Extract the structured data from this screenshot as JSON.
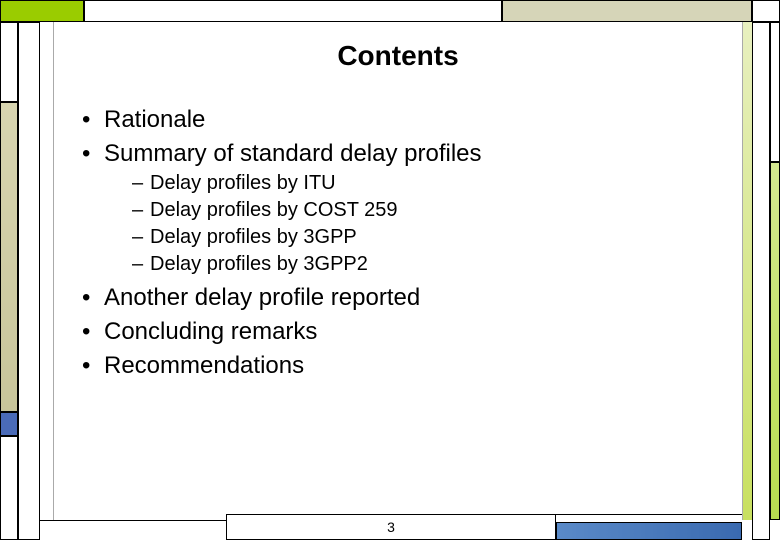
{
  "slide": {
    "title": "Contents",
    "page_number": "3",
    "items": [
      {
        "text": "Rationale"
      },
      {
        "text": "Summary of standard delay profiles",
        "sub": [
          "Delay profiles by ITU",
          "Delay profiles by COST 259",
          "Delay profiles by 3GPP",
          "Delay profiles by 3GPP2"
        ]
      },
      {
        "text": "Another delay profile reported"
      },
      {
        "text": "Concluding remarks"
      },
      {
        "text": "Recommendations"
      }
    ]
  },
  "colors": {
    "accent_green": "#9acc00",
    "beige": "#d6d5b8",
    "blue": "#4a6bb8",
    "light_green_grad_top": "#d4e890",
    "light_green_grad_bot": "#b8dc50"
  }
}
